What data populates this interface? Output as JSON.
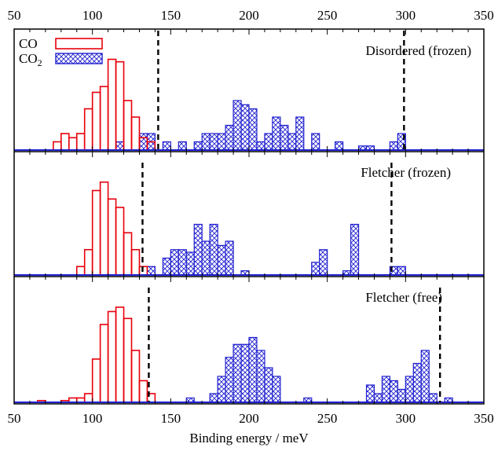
{
  "chart_data": {
    "type": "bar",
    "xlabel": "Binding energy / meV",
    "xlim": [
      50,
      350
    ],
    "x_ticks": [
      50,
      100,
      150,
      200,
      250,
      300,
      350
    ],
    "bin_width": 5,
    "colors": {
      "co": "#e8000b",
      "co2": "#1f1fd0",
      "threshold": "#000000"
    },
    "legend": {
      "placement": "top-left",
      "entries": [
        {
          "name": "CO",
          "sub": "",
          "style": "open-red"
        },
        {
          "name": "CO",
          "sub": "2",
          "style": "crosshatch-blue"
        }
      ]
    },
    "panels": [
      {
        "label": "Disordered (frozen)",
        "ylim": [
          0,
          12
        ],
        "thresholds": [
          142,
          299
        ],
        "series": [
          {
            "name": "CO",
            "x": [
              77.5,
              82.5,
              87.5,
              92.5,
              97.5,
              102.5,
              107.5,
              112.5,
              117.5,
              122.5,
              127.5,
              132.5,
              137.5
            ],
            "values": [
              1,
              2,
              1.5,
              2,
              5,
              7,
              7.7,
              11,
              10.7,
              6,
              4,
              1.5,
              1
            ]
          },
          {
            "name": "CO2",
            "x": [
              117.5,
              132.5,
              137.5,
              147.5,
              157.5,
              167.5,
              172.5,
              177.5,
              182.5,
              187.5,
              192.5,
              197.5,
              202.5,
              207.5,
              212.5,
              217.5,
              222.5,
              227.5,
              232.5,
              242.5,
              257.5,
              272.5,
              277.5,
              292.5,
              297.5
            ],
            "values": [
              1,
              2,
              2,
              1,
              1,
              1,
              2,
              2,
              2,
              3,
              6,
              5.5,
              5,
              1,
              2,
              4,
              3,
              2,
              4,
              2,
              1,
              0.5,
              0.5,
              1,
              2
            ]
          }
        ]
      },
      {
        "label": "Fletcher (frozen)",
        "ylim": [
          0,
          12
        ],
        "thresholds": [
          132,
          291
        ],
        "series": [
          {
            "name": "CO",
            "x": [
              92.5,
              97.5,
              102.5,
              107.5,
              112.5,
              117.5,
              122.5,
              127.5,
              132.5
            ],
            "values": [
              1,
              3,
              10,
              11,
              9,
              8,
              5,
              3,
              1
            ]
          },
          {
            "name": "CO2",
            "x": [
              137.5,
              147.5,
              152.5,
              157.5,
              162.5,
              167.5,
              172.5,
              177.5,
              182.5,
              187.5,
              197.5,
              242.5,
              247.5,
              262.5,
              267.5,
              292.5,
              297.5
            ],
            "values": [
              1,
              2,
              3,
              3,
              2.7,
              6,
              4,
              6,
              3.5,
              4,
              0.5,
              1.5,
              3,
              0.5,
              6,
              1,
              1
            ]
          }
        ]
      },
      {
        "label": "Fletcher (free)",
        "ylim": [
          0,
          12
        ],
        "thresholds": [
          136,
          322
        ],
        "series": [
          {
            "name": "CO",
            "x": [
              67.5,
              82.5,
              87.5,
              92.5,
              97.5,
              102.5,
              107.5,
              112.5,
              117.5,
              122.5,
              127.5,
              132.5,
              137.5
            ],
            "values": [
              0.2,
              0.2,
              0.5,
              0.5,
              1,
              5,
              9,
              10.5,
              11,
              9.7,
              6,
              2.5,
              1
            ]
          },
          {
            "name": "CO2",
            "x": [
              162.5,
              177.5,
              182.5,
              187.5,
              192.5,
              197.5,
              202.5,
              207.5,
              212.5,
              217.5,
              237.5,
              277.5,
              282.5,
              287.5,
              292.5,
              297.5,
              302.5,
              307.5,
              312.5,
              317.5,
              327.5
            ],
            "values": [
              0.5,
              1,
              3,
              5.2,
              6.7,
              6.7,
              7.5,
              6,
              4,
              3,
              0.5,
              2,
              1,
              3,
              2.5,
              1.5,
              3,
              4.5,
              6,
              1,
              0.5
            ]
          }
        ]
      }
    ]
  }
}
